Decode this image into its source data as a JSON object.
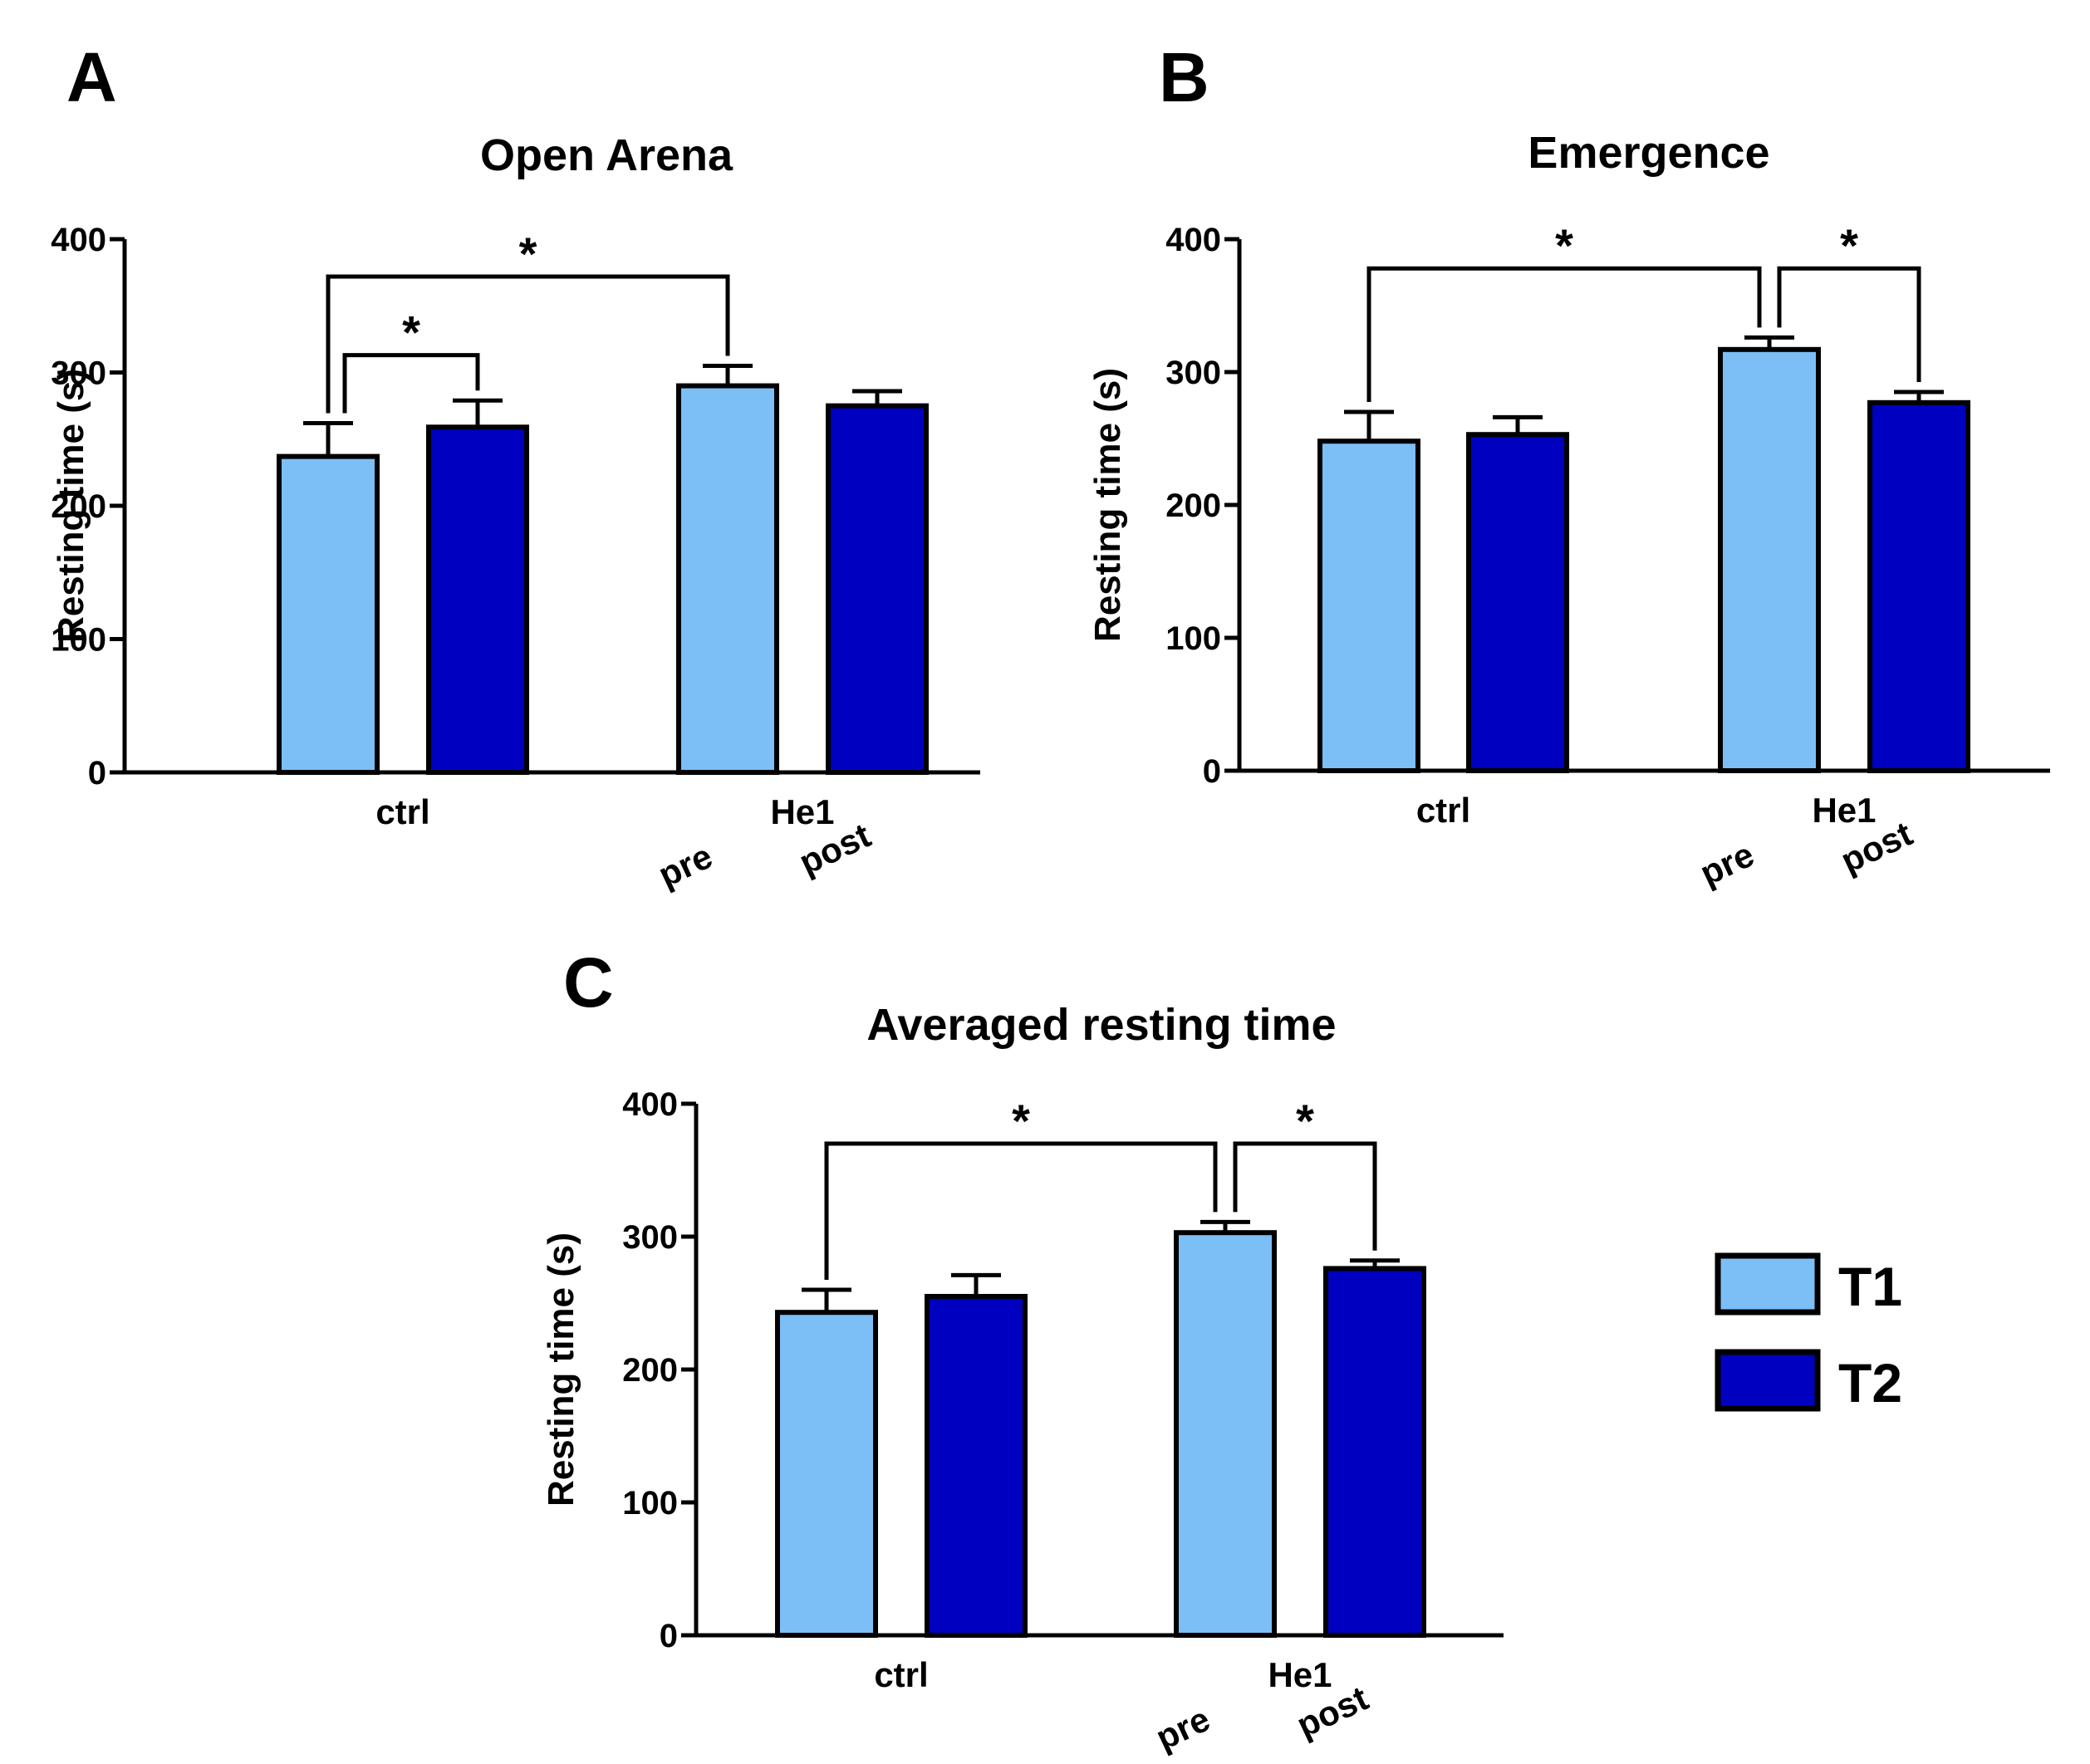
{
  "figure": {
    "legend": [
      {
        "label": "T1",
        "color": "#7bbff6"
      },
      {
        "label": "T2",
        "color": "#0000c0"
      }
    ]
  },
  "chart_data": [
    {
      "panel": "A",
      "type": "bar",
      "title": "Open Arena",
      "ylabel": "Resting time (s)",
      "xlabel": "",
      "ylim": [
        0,
        400
      ],
      "yticks": [
        0,
        100,
        200,
        300,
        400
      ],
      "groups": [
        "ctrl",
        "He1"
      ],
      "sublabels": [
        "pre",
        "post"
      ],
      "series": [
        {
          "name": "T1",
          "color": "#7bbff6",
          "values": [
            237,
            290
          ],
          "errors": [
            25,
            15
          ]
        },
        {
          "name": "T2",
          "color": "#0000c0",
          "values": [
            259,
            275
          ],
          "errors": [
            20,
            11
          ]
        }
      ],
      "significance": [
        {
          "from": 0,
          "to": 1,
          "label": "*"
        },
        {
          "from": 0,
          "to": 2,
          "label": "*"
        }
      ]
    },
    {
      "panel": "B",
      "type": "bar",
      "title": "Emergence",
      "ylabel": "Resting time (s)",
      "xlabel": "",
      "ylim": [
        0,
        400
      ],
      "yticks": [
        0,
        100,
        200,
        300,
        400
      ],
      "groups": [
        "ctrl",
        "He1"
      ],
      "sublabels": [
        "pre",
        "post"
      ],
      "series": [
        {
          "name": "T1",
          "color": "#7bbff6",
          "values": [
            248,
            317
          ],
          "errors": [
            22,
            9
          ]
        },
        {
          "name": "T2",
          "color": "#0000c0",
          "values": [
            253,
            277
          ],
          "errors": [
            13,
            8
          ]
        }
      ],
      "significance": [
        {
          "from": 0,
          "to": 2,
          "label": "*"
        },
        {
          "from": 2,
          "to": 3,
          "label": "*"
        }
      ]
    },
    {
      "panel": "C",
      "type": "bar",
      "title": "Averaged resting time",
      "ylabel": "Resting time (s)",
      "xlabel": "",
      "ylim": [
        0,
        400
      ],
      "yticks": [
        0,
        100,
        200,
        300,
        400
      ],
      "groups": [
        "ctrl",
        "He1"
      ],
      "sublabels": [
        "pre",
        "post"
      ],
      "series": [
        {
          "name": "T1",
          "color": "#7bbff6",
          "values": [
            243,
            303
          ],
          "errors": [
            17,
            8
          ]
        },
        {
          "name": "T2",
          "color": "#0000c0",
          "values": [
            255,
            276
          ],
          "errors": [
            16,
            6
          ]
        }
      ],
      "significance": [
        {
          "from": 0,
          "to": 2,
          "label": "*"
        },
        {
          "from": 2,
          "to": 3,
          "label": "*"
        }
      ]
    }
  ]
}
